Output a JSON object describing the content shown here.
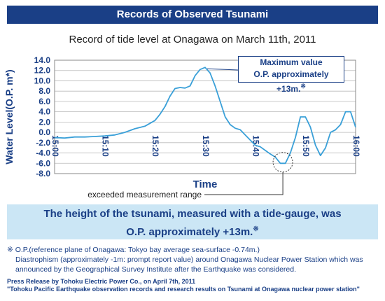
{
  "header": {
    "title": "Records of Observed Tsunami"
  },
  "chart_data": {
    "type": "line",
    "title": "Record of tide level at Onagawa on March 11th, 2011",
    "xlabel": "Time",
    "ylabel": "Water Level(O.P. m*)",
    "ylim": [
      -8.0,
      14.0
    ],
    "yticks": [
      "14.0",
      "12.0",
      "10.0",
      "8.0",
      "6.0",
      "4.0",
      "2.0",
      "0.0",
      "-2.0",
      "-4.0",
      "-6.0",
      "-8.0"
    ],
    "xlim": [
      "15:00",
      "16:00"
    ],
    "xticks": [
      "15:00",
      "15:10",
      "15:20",
      "15:30",
      "15:40",
      "15:50",
      "16:00"
    ],
    "grid": "horizontal",
    "series": [
      {
        "x": [
          "15:00",
          "15:02",
          "15:04",
          "15:06",
          "15:08",
          "15:10",
          "15:12",
          "15:14",
          "15:16",
          "15:18",
          "15:20",
          "15:21",
          "15:22",
          "15:23",
          "15:24",
          "15:25",
          "15:26",
          "15:27",
          "15:28",
          "15:29",
          "15:30",
          "15:31",
          "15:32",
          "15:33",
          "15:34",
          "15:35",
          "15:36",
          "15:37",
          "15:38",
          "15:39",
          "15:40",
          "15:41",
          "15:42",
          "15:43",
          "15:44",
          "15:45",
          "15:46",
          "15:47",
          "15:48",
          "15:49",
          "15:50",
          "15:51",
          "15:52",
          "15:53",
          "15:54",
          "15:55",
          "15:56",
          "15:57",
          "15:58",
          "15:59",
          "16:00"
        ],
        "y": [
          -1.0,
          -1.1,
          -0.9,
          -0.9,
          -0.8,
          -0.7,
          -0.5,
          0.0,
          0.7,
          1.2,
          2.3,
          3.5,
          5.0,
          7.0,
          8.5,
          8.7,
          8.6,
          9.0,
          11.0,
          12.2,
          12.6,
          11.5,
          9.0,
          6.0,
          3.0,
          1.5,
          0.8,
          0.5,
          -0.5,
          -1.5,
          -2.5,
          -2.8,
          -3.5,
          -4.2,
          -4.8,
          -6.0,
          -6.0,
          -4.0,
          -1.0,
          3.0,
          3.0,
          1.0,
          -2.5,
          -4.5,
          -3.0,
          0.0,
          0.5,
          1.5,
          4.0,
          4.0,
          1.0
        ]
      }
    ],
    "annotations": [
      {
        "text": "Maximum value",
        "line2": "O.P. approximately +13m.",
        "mark": "※"
      },
      {
        "text": "exceeded measurement range"
      }
    ]
  },
  "headline": {
    "line1": "The height of the tsunami, measured with a tide-gauge, was",
    "line2": "O.P. approximately +13m.",
    "mark": "※"
  },
  "notes": {
    "line1": "※ O.P.(reference plane of Onagawa: Tokyo bay average sea-surface -0.74m.)",
    "line2": "Diastrophism (approximately -1m: prompt report value) around Onagawa Nuclear Power Station which was announced by the Geographical Survey Institute after the Earthquake was considered."
  },
  "press": {
    "line1": "Press Release by Tohoku Electric Power Co., on April 7th, 2011",
    "line2": "\"Tohoku Pacific Earthquake observation records and research results on Tsunami at Onagawa nuclear power station\""
  },
  "colors": {
    "brand": "#1a3f86",
    "line": "#3aa0d8",
    "panel": "#cbe6f5"
  }
}
